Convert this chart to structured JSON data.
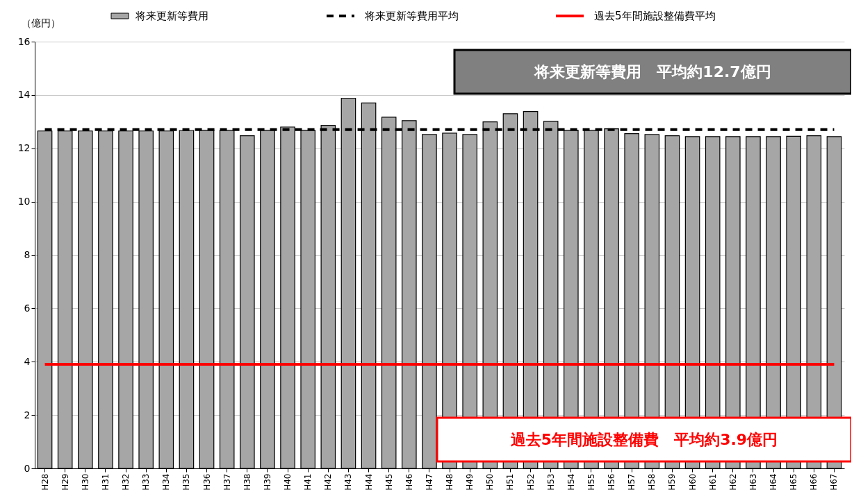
{
  "chart_data": {
    "type": "bar",
    "ylabel": "（億円）",
    "categories": [
      "H28",
      "H29",
      "H30",
      "H31",
      "H32",
      "H33",
      "H34",
      "H35",
      "H36",
      "H37",
      "H38",
      "H39",
      "H40",
      "H41",
      "H42",
      "H43",
      "H44",
      "H45",
      "H46",
      "H47",
      "H48",
      "H49",
      "H50",
      "H51",
      "H52",
      "H53",
      "H54",
      "H55",
      "H56",
      "H57",
      "H58",
      "H59",
      "H60",
      "H61",
      "H62",
      "H63",
      "H64",
      "H65",
      "H66",
      "H67"
    ],
    "series": [
      {
        "name": "将来更新等費用",
        "type": "bar",
        "color": "#a6a6a6",
        "values": [
          12.65,
          12.65,
          12.65,
          12.65,
          12.65,
          12.65,
          12.65,
          12.67,
          12.68,
          12.68,
          12.47,
          12.68,
          12.8,
          12.68,
          12.86,
          13.88,
          13.7,
          13.17,
          13.04,
          12.52,
          12.57,
          12.52,
          12.99,
          13.3,
          13.38,
          13.01,
          12.68,
          12.68,
          12.73,
          12.55,
          12.52,
          12.47,
          12.44,
          12.44,
          12.44,
          12.44,
          12.44,
          12.45,
          12.47,
          12.44
        ]
      },
      {
        "name": "将来更新等費用平均",
        "type": "line",
        "line_style": "dashed",
        "color": "#000000",
        "values": [
          12.7,
          12.7,
          12.7,
          12.7,
          12.7,
          12.7,
          12.7,
          12.7,
          12.7,
          12.7,
          12.7,
          12.7,
          12.7,
          12.7,
          12.7,
          12.7,
          12.7,
          12.7,
          12.7,
          12.7,
          12.7,
          12.7,
          12.7,
          12.7,
          12.7,
          12.7,
          12.7,
          12.7,
          12.7,
          12.7,
          12.7,
          12.7,
          12.7,
          12.7,
          12.7,
          12.7,
          12.7,
          12.7,
          12.7,
          12.7
        ]
      },
      {
        "name": "過去5年間施設整備費平均",
        "type": "line",
        "line_style": "solid",
        "color": "#ff0000",
        "values": [
          3.9,
          3.9,
          3.9,
          3.9,
          3.9,
          3.9,
          3.9,
          3.9,
          3.9,
          3.9,
          3.9,
          3.9,
          3.9,
          3.9,
          3.9,
          3.9,
          3.9,
          3.9,
          3.9,
          3.9,
          3.9,
          3.9,
          3.9,
          3.9,
          3.9,
          3.9,
          3.9,
          3.9,
          3.9,
          3.9,
          3.9,
          3.9,
          3.9,
          3.9,
          3.9,
          3.9,
          3.9,
          3.9,
          3.9,
          3.9
        ]
      }
    ],
    "ylim": [
      0,
      16
    ],
    "yticks": [
      0,
      2,
      4,
      6,
      8,
      10,
      12,
      14,
      16
    ],
    "grid": "y",
    "legend": "top",
    "annotations": [
      "将来更新等費用　平均約12.7億円",
      "過去5年間施設整備費　平均約3.9億円"
    ]
  }
}
